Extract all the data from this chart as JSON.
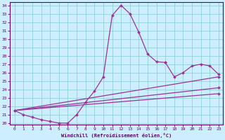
{
  "xlabel": "Windchill (Refroidissement éolien,°C)",
  "bg_color": "#cceeff",
  "line_color": "#993399",
  "grid_color": "#88cccc",
  "tick_color": "#660066",
  "xlim": [
    -0.5,
    23.5
  ],
  "ylim": [
    19.8,
    34.4
  ],
  "xticks": [
    0,
    1,
    2,
    3,
    4,
    5,
    6,
    7,
    8,
    9,
    10,
    11,
    12,
    13,
    14,
    15,
    16,
    17,
    18,
    19,
    20,
    21,
    22,
    23
  ],
  "yticks": [
    20,
    21,
    22,
    23,
    24,
    25,
    26,
    27,
    28,
    29,
    30,
    31,
    32,
    33,
    34
  ],
  "curve1_x": [
    0,
    1,
    2,
    3,
    4,
    5,
    6,
    7,
    8,
    9,
    10,
    11,
    12,
    13,
    14,
    15,
    16,
    17
  ],
  "curve1_y": [
    21.5,
    21.0,
    20.7,
    20.4,
    20.2,
    20.0,
    20.0,
    21.0,
    22.5,
    23.8,
    25.5,
    32.8,
    34.0,
    33.0,
    30.8,
    28.2,
    27.3,
    27.2
  ],
  "curve2_x": [
    17,
    18,
    19,
    20,
    21,
    22,
    23
  ],
  "curve2_y": [
    27.2,
    25.5,
    26.0,
    26.8,
    27.0,
    26.8,
    25.8
  ],
  "line1_x": [
    0,
    23
  ],
  "line1_y": [
    21.5,
    25.5
  ],
  "line2_x": [
    0,
    23
  ],
  "line2_y": [
    21.5,
    24.2
  ],
  "line3_x": [
    0,
    23
  ],
  "line3_y": [
    21.5,
    23.5
  ]
}
